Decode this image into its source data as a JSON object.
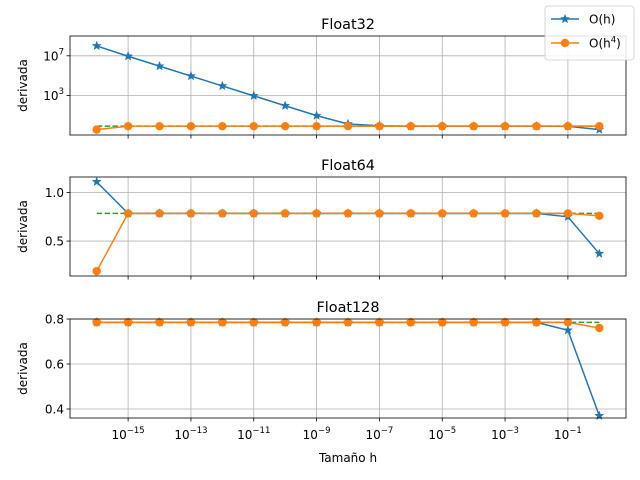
{
  "chart_data": {
    "type": "line",
    "xscale": "log",
    "xlabel": "Tamaño h",
    "x_tick_labels": [
      "10^-15",
      "10^-13",
      "10^-11",
      "10^-9",
      "10^-7",
      "10^-5",
      "10^-3",
      "10^-1"
    ],
    "legend": {
      "placement": "top-right",
      "entries": [
        {
          "label": "O(h)",
          "label_main": "O(h)",
          "label_sup": "",
          "color": "#1f77b4",
          "marker": "star"
        },
        {
          "label": "O(h^4)",
          "label_main": "O(h",
          "label_sup": "4",
          "label_tail": ")",
          "color": "#ff7f0e",
          "marker": "circle"
        }
      ]
    },
    "reference_line_color": "#2ca02c",
    "x": [
      1e-16,
      1e-15,
      1e-14,
      1e-13,
      1e-12,
      1e-11,
      1e-10,
      1e-09,
      1e-08,
      1e-07,
      1e-06,
      1e-05,
      0.0001,
      0.001,
      0.01,
      0.1,
      1
    ],
    "subplots": [
      {
        "title": "Float32",
        "ylabel": "derivada",
        "yscale": "log",
        "ylim": [
          0.1,
          1000000000.0
        ],
        "y_tick_labels": [
          "10^3",
          "10^7"
        ],
        "grid": true,
        "reference_value": 0.78,
        "series": [
          {
            "name": "O(h)",
            "values": [
              100000000.0,
              9000000.0,
              900000.0,
              90000.0,
              9000.0,
              900.0,
              90.0,
              9.0,
              1.3,
              0.85,
              0.78,
              0.78,
              0.78,
              0.78,
              0.78,
              0.76,
              0.35
            ]
          },
          {
            "name": "O(h^4)",
            "values": [
              0.35,
              0.78,
              0.78,
              0.78,
              0.78,
              0.78,
              0.78,
              0.78,
              0.78,
              0.78,
              0.78,
              0.78,
              0.78,
              0.78,
              0.78,
              0.78,
              0.78
            ]
          }
        ]
      },
      {
        "title": "Float64",
        "ylabel": "derivada",
        "yscale": "linear",
        "ylim": [
          0.14,
          1.16
        ],
        "y_tick_labels": [
          "0.5",
          "1.0"
        ],
        "y_ticks": [
          0.5,
          1.0
        ],
        "grid": true,
        "reference_value": 0.785,
        "series": [
          {
            "name": "O(h)",
            "values": [
              1.11,
              0.785,
              0.785,
              0.785,
              0.785,
              0.785,
              0.785,
              0.785,
              0.785,
              0.785,
              0.785,
              0.785,
              0.785,
              0.785,
              0.785,
              0.75,
              0.37
            ]
          },
          {
            "name": "O(h^4)",
            "values": [
              0.19,
              0.785,
              0.785,
              0.785,
              0.785,
              0.785,
              0.785,
              0.785,
              0.785,
              0.785,
              0.785,
              0.785,
              0.785,
              0.785,
              0.785,
              0.785,
              0.76
            ]
          }
        ]
      },
      {
        "title": "Float128",
        "ylabel": "derivada",
        "yscale": "linear",
        "ylim": [
          0.36,
          0.8
        ],
        "y_tick_labels": [
          "0.4",
          "0.6",
          "0.8"
        ],
        "y_ticks": [
          0.4,
          0.6,
          0.8
        ],
        "grid": true,
        "reference_value": 0.785,
        "series": [
          {
            "name": "O(h)",
            "values": [
              0.785,
              0.785,
              0.785,
              0.785,
              0.785,
              0.785,
              0.785,
              0.785,
              0.785,
              0.785,
              0.785,
              0.785,
              0.785,
              0.785,
              0.785,
              0.75,
              0.37
            ]
          },
          {
            "name": "O(h^4)",
            "values": [
              0.785,
              0.785,
              0.785,
              0.785,
              0.785,
              0.785,
              0.785,
              0.785,
              0.785,
              0.785,
              0.785,
              0.785,
              0.785,
              0.785,
              0.785,
              0.785,
              0.76
            ]
          }
        ]
      }
    ]
  }
}
